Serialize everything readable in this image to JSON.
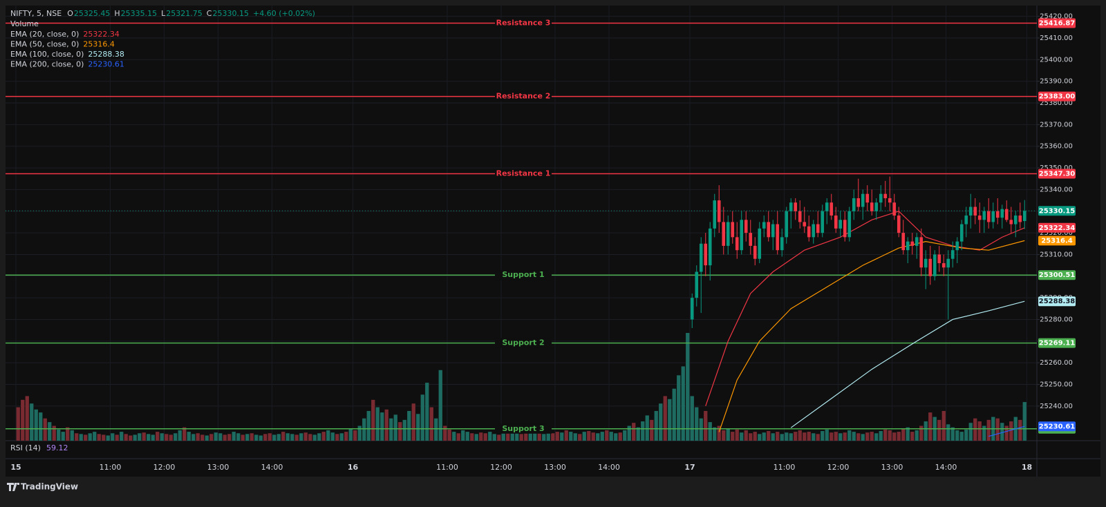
{
  "chart_data": {
    "type": "candlestick",
    "symbol": "NIFTY, 5, NSE",
    "ohlc_labels": [
      "O",
      "H",
      "L",
      "C"
    ],
    "change": "+4.60 (+0.02%)",
    "volume_name": "Volume",
    "ylim": [
      25224,
      25425
    ],
    "yticks": [
      {
        "value": 25420,
        "label": "25420.00"
      },
      {
        "value": 25410,
        "label": "25410.00"
      },
      {
        "value": 25400,
        "label": "25400.00"
      },
      {
        "value": 25390,
        "label": "25390.00"
      },
      {
        "value": 25380,
        "label": "25380.00"
      },
      {
        "value": 25370,
        "label": "25370.00"
      },
      {
        "value": 25360,
        "label": "25360.00"
      },
      {
        "value": 25350,
        "label": "25350.00"
      },
      {
        "value": 25340,
        "label": "25340.00"
      },
      {
        "value": 25330,
        "label": "25330.00"
      },
      {
        "value": 25320,
        "label": "25320.00"
      },
      {
        "value": 25310,
        "label": "25310.00"
      },
      {
        "value": 25300,
        "label": "25300.00"
      },
      {
        "value": 25290,
        "label": "25290.00"
      },
      {
        "value": 25280,
        "label": "25280.00"
      },
      {
        "value": 25270,
        "label": "25270.00"
      },
      {
        "value": 25260,
        "label": "25260.00"
      },
      {
        "value": 25250,
        "label": "25250.00"
      },
      {
        "value": 25240,
        "label": "25240.00"
      }
    ],
    "grid": true,
    "x_labels": [
      "15",
      "11:00",
      "12:00",
      "13:00",
      "14:00",
      "16",
      "11:00",
      "12:00",
      "13:00",
      "14:00",
      "17",
      "11:00",
      "12:00",
      "13:00",
      "14:00",
      "18"
    ],
    "up_color": "#089981",
    "down_color": "#f23645",
    "volume_up_color": "#1d6b61",
    "volume_down_color": "#7a2a31",
    "last_color": "#089981",
    "ohlc": [
      [
        25280,
        25292,
        25276,
        25290
      ],
      [
        25290,
        25305,
        25286,
        25302
      ],
      [
        25302,
        25318,
        25283,
        25315
      ],
      [
        25315,
        25320,
        25300,
        25305
      ],
      [
        25305,
        25325,
        25298,
        25322
      ],
      [
        25322,
        25338,
        25318,
        25335
      ],
      [
        25335,
        25342,
        25320,
        25325
      ],
      [
        25325,
        25332,
        25310,
        25314
      ],
      [
        25314,
        25328,
        25310,
        25325
      ],
      [
        25325,
        25330,
        25315,
        25318
      ],
      [
        25318,
        25325,
        25308,
        25312
      ],
      [
        25312,
        25330,
        25310,
        25326
      ],
      [
        25326,
        25330,
        25316,
        25320
      ],
      [
        25320,
        25326,
        25310,
        25314
      ],
      [
        25314,
        25318,
        25305,
        25308
      ],
      [
        25308,
        25325,
        25306,
        25322
      ],
      [
        25322,
        25328,
        25318,
        25325
      ],
      [
        25325,
        25330,
        25316,
        25318
      ],
      [
        25318,
        25326,
        25312,
        25324
      ],
      [
        25324,
        25330,
        25310,
        25312
      ],
      [
        25312,
        25322,
        25309,
        25318
      ],
      [
        25318,
        25332,
        25315,
        25330
      ],
      [
        25330,
        25336,
        25322,
        25334
      ],
      [
        25334,
        25336,
        25326,
        25330
      ],
      [
        25330,
        25335,
        25322,
        25325
      ],
      [
        25325,
        25332,
        25320,
        25323
      ],
      [
        25323,
        25328,
        25316,
        25318
      ],
      [
        25318,
        25326,
        25315,
        25324
      ],
      [
        25324,
        25330,
        25318,
        25320
      ],
      [
        25320,
        25333,
        25318,
        25330
      ],
      [
        25330,
        25336,
        25324,
        25334
      ],
      [
        25334,
        25338,
        25326,
        25328
      ],
      [
        25328,
        25332,
        25320,
        25322
      ],
      [
        25322,
        25330,
        25318,
        25326
      ],
      [
        25326,
        25330,
        25316,
        25318
      ],
      [
        25318,
        25332,
        25316,
        25330
      ],
      [
        25330,
        25340,
        25326,
        25336
      ],
      [
        25336,
        25345,
        25330,
        25332
      ],
      [
        25332,
        25340,
        25326,
        25338
      ],
      [
        25338,
        25342,
        25330,
        25334
      ],
      [
        25334,
        25340,
        25328,
        25330
      ],
      [
        25330,
        25336,
        25326,
        25334
      ],
      [
        25334,
        25342,
        25330,
        25338
      ],
      [
        25338,
        25344,
        25332,
        25336
      ],
      [
        25336,
        25346,
        25330,
        25334
      ],
      [
        25334,
        25338,
        25326,
        25328
      ],
      [
        25328,
        25332,
        25318,
        25320
      ],
      [
        25320,
        25326,
        25310,
        25312
      ],
      [
        25312,
        25318,
        25306,
        25316
      ],
      [
        25316,
        25320,
        25310,
        25314
      ],
      [
        25314,
        25320,
        25308,
        25318
      ],
      [
        25318,
        25322,
        25300,
        25304
      ],
      [
        25304,
        25312,
        25294,
        25308
      ],
      [
        25308,
        25314,
        25296,
        25300
      ],
      [
        25300,
        25312,
        25298,
        25310
      ],
      [
        25310,
        25314,
        25302,
        25306
      ],
      [
        25306,
        25310,
        25300,
        25304
      ],
      [
        25304,
        25312,
        25280,
        25308
      ],
      [
        25308,
        25316,
        25304,
        25312
      ],
      [
        25312,
        25318,
        25306,
        25316
      ],
      [
        25316,
        25326,
        25312,
        25324
      ],
      [
        25324,
        25332,
        25318,
        25328
      ],
      [
        25328,
        25338,
        25322,
        25332
      ],
      [
        25332,
        25336,
        25324,
        25328
      ],
      [
        25328,
        25334,
        25320,
        25326
      ],
      [
        25326,
        25332,
        25320,
        25330
      ],
      [
        25330,
        25336,
        25322,
        25325
      ],
      [
        25325,
        25334,
        25322,
        25330
      ],
      [
        25330,
        25336,
        25324,
        25327
      ],
      [
        25327,
        25333,
        25322,
        25331
      ],
      [
        25331,
        25335,
        25325,
        25326
      ],
      [
        25326,
        25332,
        25320,
        25324
      ],
      [
        25324,
        25330,
        25318,
        25328
      ],
      [
        25328,
        25334,
        25322,
        25325
      ],
      [
        25325.45,
        25335.15,
        25321.75,
        25330.15
      ]
    ],
    "volume": [
      45,
      55,
      60,
      50,
      42,
      38,
      30,
      25,
      20,
      15,
      12,
      18,
      14,
      10,
      9,
      8,
      10,
      12,
      9,
      8,
      7,
      10,
      8,
      12,
      9,
      7,
      8,
      10,
      11,
      9,
      8,
      12,
      10,
      9,
      8,
      10,
      14,
      18,
      12,
      9,
      10,
      8,
      7,
      9,
      11,
      10,
      8,
      9,
      12,
      10,
      8,
      9,
      10,
      8,
      7,
      9,
      10,
      8,
      9,
      12,
      10,
      9,
      8,
      10,
      11,
      9,
      8,
      10,
      12,
      14,
      11,
      9,
      10,
      12,
      16,
      14,
      20,
      30,
      40,
      55,
      45,
      38,
      42,
      30,
      35,
      25,
      28,
      40,
      50,
      36,
      62,
      78,
      45,
      30,
      95,
      20,
      15,
      12,
      10,
      14,
      12,
      10,
      9,
      11,
      10,
      12,
      9,
      8,
      10,
      12,
      14,
      10,
      9,
      11,
      10,
      12,
      11,
      9,
      13,
      10,
      12,
      11,
      14,
      12,
      10,
      9,
      12,
      13,
      11,
      10,
      12,
      14,
      12,
      10,
      11,
      14,
      20,
      24,
      18,
      26,
      34,
      28,
      40,
      50,
      60,
      56,
      70,
      88,
      100,
      145,
      60,
      45,
      30,
      40,
      25,
      18,
      20,
      14,
      16,
      12,
      15,
      11,
      14,
      10,
      12,
      9,
      11,
      13,
      10,
      12,
      9,
      11,
      10,
      12,
      14,
      11,
      12,
      10,
      9,
      13,
      15,
      11,
      12,
      10,
      11,
      14,
      12,
      10,
      9,
      11,
      12,
      10,
      13,
      15,
      14,
      11,
      12,
      16,
      18,
      12,
      14,
      20,
      26,
      38,
      32,
      28,
      40,
      22,
      18,
      14,
      12,
      15,
      24,
      30,
      26,
      20,
      28,
      32,
      30,
      24,
      20,
      26,
      32,
      28,
      52
    ],
    "volume_up": [
      0,
      0,
      0,
      1,
      1,
      1,
      0,
      1,
      0,
      1,
      1,
      0,
      1,
      0,
      1,
      0,
      1,
      1,
      0,
      0,
      1,
      1,
      0,
      1,
      0,
      0,
      1,
      1,
      0,
      1,
      1,
      0,
      1,
      0,
      0,
      1,
      1,
      0,
      1,
      1,
      0,
      0,
      1,
      0,
      1,
      1,
      0,
      0,
      1,
      1,
      0,
      1,
      0,
      1,
      1,
      0,
      0,
      1,
      1,
      0,
      1,
      1,
      0,
      1,
      0,
      0,
      1,
      1,
      0,
      1,
      1,
      0,
      1,
      0,
      1,
      0,
      1,
      1,
      1,
      0,
      1,
      1,
      0,
      1,
      1,
      0,
      1,
      1,
      0,
      1,
      1,
      1,
      0,
      1,
      1,
      0,
      0,
      1,
      0,
      1,
      1,
      0,
      1,
      0,
      0,
      1,
      1,
      0,
      1,
      0,
      1,
      1,
      0,
      0,
      1,
      1,
      0,
      1,
      1,
      0,
      0,
      1,
      0,
      1,
      1,
      0,
      1,
      0,
      0,
      1,
      1,
      0,
      1,
      1,
      0,
      1,
      1,
      0,
      1,
      1,
      1,
      0,
      1,
      1,
      0,
      1,
      1,
      1,
      1,
      1,
      1,
      1,
      1,
      0,
      1,
      1,
      0,
      0,
      1,
      0,
      0,
      1,
      0,
      0,
      0,
      1,
      1,
      0,
      1,
      0,
      1,
      1,
      1,
      0,
      0,
      0,
      0,
      1,
      0,
      1,
      1,
      0,
      0,
      1,
      0,
      1,
      1,
      0,
      1,
      0,
      0,
      1,
      1,
      0,
      0,
      0,
      0,
      0,
      1,
      0,
      1,
      0,
      1,
      0,
      1,
      0,
      0,
      1,
      1,
      1,
      1,
      1,
      1,
      0,
      0,
      1,
      0,
      1,
      0,
      1,
      0,
      0,
      1,
      0,
      1
    ],
    "series": [
      {
        "name": "EMA (20, close, 0)",
        "color": "#f23645",
        "x": [
          153,
          158,
          163,
          168,
          175,
          183,
          190,
          196,
          202,
          208,
          214,
          219,
          224
        ],
        "values": [
          25240,
          25270,
          25292,
          25302,
          25312,
          25318,
          25326,
          25330,
          25318,
          25314,
          25312,
          25318,
          25322.34
        ]
      },
      {
        "name": "EMA (50, close, 0)",
        "color": "#ff9800",
        "x": [
          156,
          160,
          165,
          172,
          180,
          188,
          196,
          202,
          210,
          216,
          224
        ],
        "values": [
          25228,
          25252,
          25270,
          25285,
          25295,
          25305,
          25313,
          25316,
          25313,
          25312,
          25316.4
        ]
      },
      {
        "name": "EMA (100, close, 0)",
        "color": "#b2ebf2",
        "x": [
          172,
          180,
          190,
          200,
          208,
          216,
          224
        ],
        "values": [
          25230,
          25242,
          25257,
          25270,
          25280,
          25284,
          25288.38
        ]
      },
      {
        "name": "EMA (200, close, 0)",
        "color": "#2962ff",
        "x": [
          216,
          224
        ],
        "values": [
          25226,
          25230.61
        ]
      }
    ],
    "levels": [
      {
        "name": "Resistance 3",
        "value": 25416.87,
        "color": "#f23645"
      },
      {
        "name": "Resistance 2",
        "value": 25383,
        "label": "25383.00",
        "color": "#f23645"
      },
      {
        "name": "Resistance 1",
        "value": 25347.3,
        "label": "25347.30",
        "color": "#f23645"
      },
      {
        "name": "Support 1",
        "value": 25300.51,
        "color": "#4caf50"
      },
      {
        "name": "Support 2",
        "value": 25269.11,
        "color": "#4caf50"
      },
      {
        "name": "Support 3",
        "value": 25229.49,
        "color": "#4caf50"
      }
    ],
    "rsi": {
      "name": "RSI (14)",
      "value": 59.12,
      "color": "#b084f5"
    },
    "brand": "TradingView"
  }
}
